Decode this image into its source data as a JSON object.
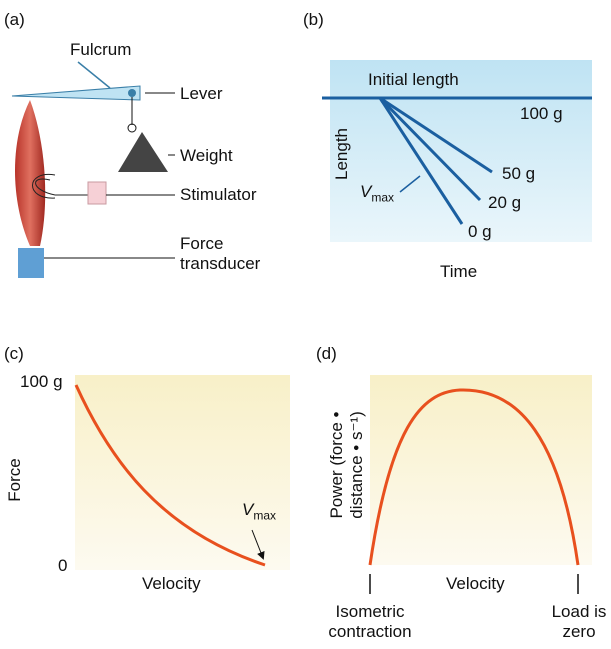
{
  "panels": [
    {
      "label": "(a)",
      "parts": [
        "Fulcrum",
        "Lever",
        "Weight",
        "Stimulator",
        "Force transducer"
      ]
    },
    {
      "label": "(b)",
      "y_axis": "Length",
      "x_axis": "Time",
      "line_label": "Initial length",
      "loads": [
        "100 g",
        "50 g",
        "20 g",
        "0 g"
      ],
      "vmax": {
        "symbol": "V",
        "subscript": "max"
      }
    },
    {
      "label": "(c)",
      "y_axis": "Force",
      "x_axis": "Velocity",
      "y_top": "100 g",
      "y_bottom": "0",
      "vmax": {
        "symbol": "V",
        "subscript": "max"
      }
    },
    {
      "label": "(d)",
      "y_axis": "Power (force • distance • s⁻¹)",
      "x_axis": "Velocity",
      "left_end": "Isometric contraction",
      "right_end": "Load is zero"
    }
  ]
}
